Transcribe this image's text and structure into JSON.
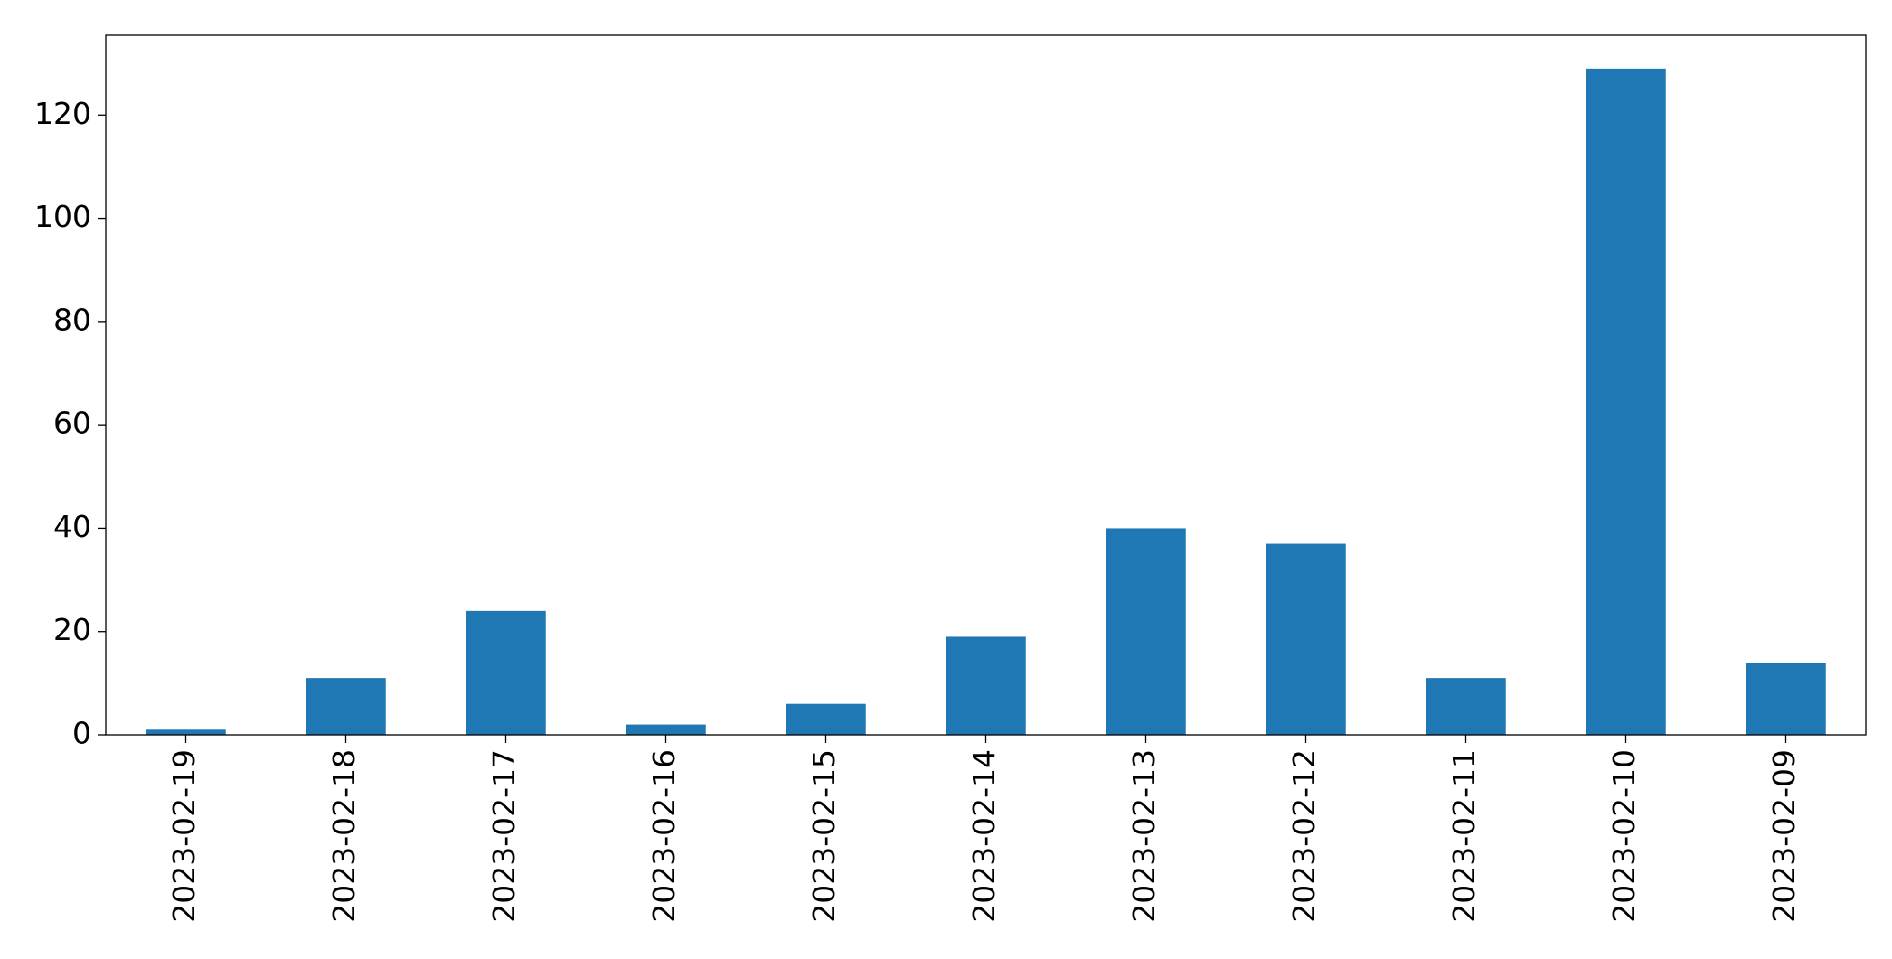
{
  "chart_data": {
    "type": "bar",
    "categories": [
      "2023-02-19",
      "2023-02-18",
      "2023-02-17",
      "2023-02-16",
      "2023-02-15",
      "2023-02-14",
      "2023-02-13",
      "2023-02-12",
      "2023-02-11",
      "2023-02-10",
      "2023-02-09"
    ],
    "values": [
      1,
      11,
      24,
      2,
      6,
      19,
      40,
      37,
      11,
      129,
      14
    ],
    "color": "#1f77b4",
    "ylim": [
      0,
      135.45
    ],
    "yticks": [
      0,
      20,
      40,
      60,
      80,
      100,
      120
    ],
    "grid": false
  }
}
